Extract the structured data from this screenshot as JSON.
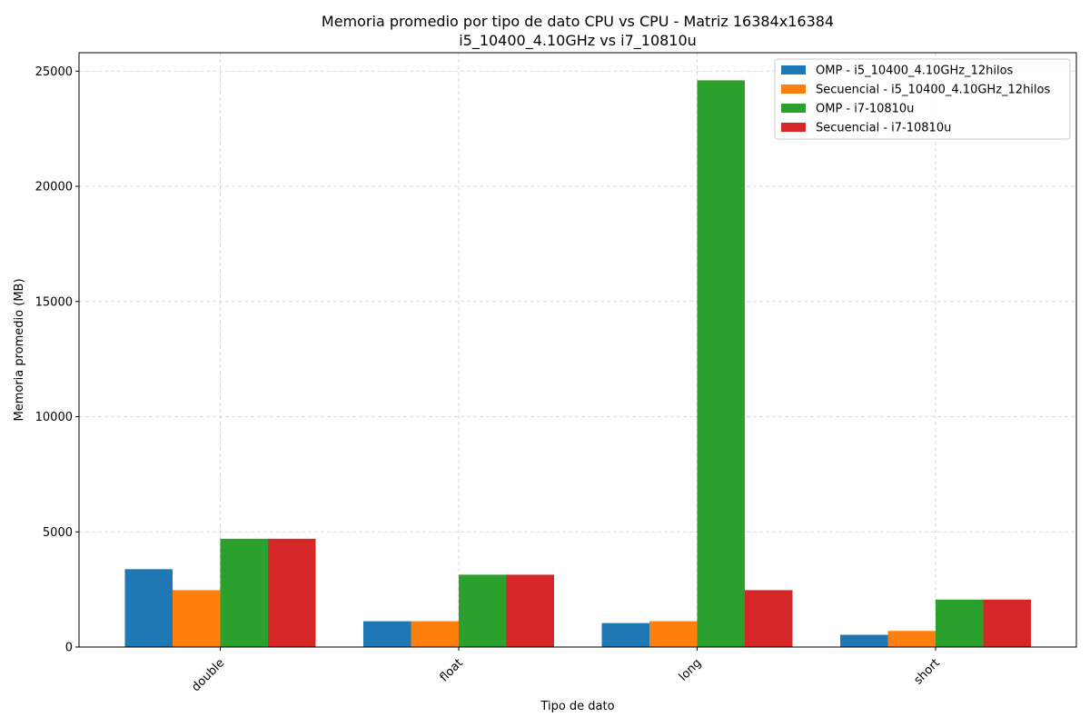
{
  "chart_data": {
    "type": "bar",
    "title": "Memoria promedio por tipo de dato CPU vs CPU - Matriz 16384x16384",
    "subtitle": "i5_10400_4.10GHz vs i7_10810u",
    "xlabel": "Tipo de dato",
    "ylabel": "Memoria promedio (MB)",
    "categories": [
      "double",
      "float",
      "long",
      "short"
    ],
    "ylim": [
      0,
      25800
    ],
    "yticks": [
      0,
      5000,
      10000,
      15000,
      20000,
      25000
    ],
    "grid": true,
    "legend_position": "top-right",
    "series": [
      {
        "name": "OMP - i5_10400_4.10GHz_12hilos",
        "color": "#1f77b4",
        "values": [
          3380,
          1120,
          1040,
          530
        ]
      },
      {
        "name": "Secuencial - i5_10400_4.10GHz_12hilos",
        "color": "#ff7f0e",
        "values": [
          2470,
          1120,
          1120,
          700
        ]
      },
      {
        "name": "OMP - i7-10810u",
        "color": "#2ca02c",
        "values": [
          4700,
          3140,
          24600,
          2060
        ]
      },
      {
        "name": "Secuencial - i7-10810u",
        "color": "#d62728",
        "values": [
          4700,
          3140,
          2470,
          2060
        ]
      }
    ]
  }
}
